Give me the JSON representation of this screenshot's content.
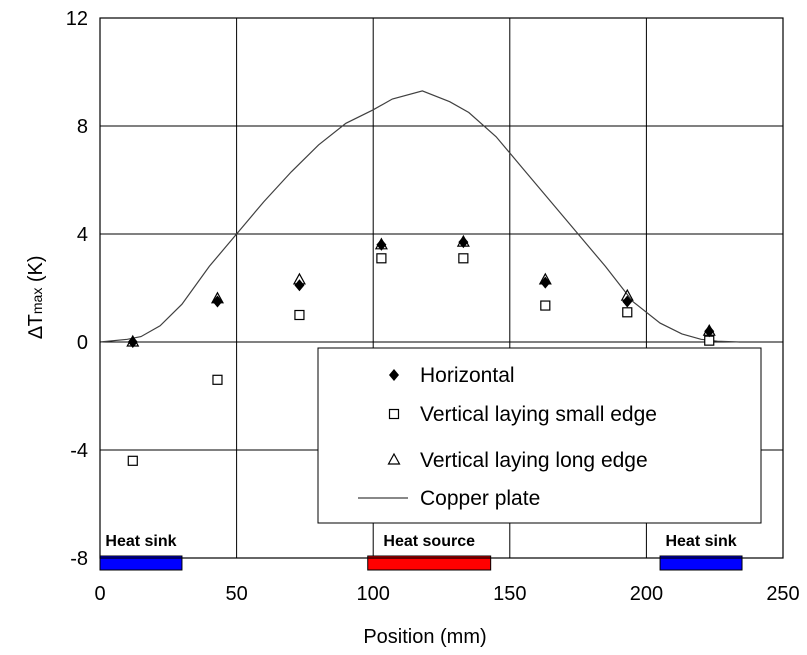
{
  "chart_data": {
    "type": "scatter",
    "xlabel": "Position (mm)",
    "ylabel_delta": "∆T",
    "ylabel_sub": "max",
    "ylabel_unit": " (K)",
    "xlim": [
      0,
      250
    ],
    "ylim": [
      -8,
      12
    ],
    "xticks": [
      0,
      50,
      100,
      150,
      200,
      250
    ],
    "yticks": [
      -8,
      -4,
      0,
      4,
      8,
      12
    ],
    "grid": true,
    "legend_position": "lower-right",
    "series": [
      {
        "name": "Horizontal",
        "marker": "filled-diamond",
        "x": [
          12,
          43,
          73,
          103,
          133,
          163,
          193,
          223
        ],
        "y": [
          0.0,
          1.5,
          2.1,
          3.6,
          3.7,
          2.2,
          1.5,
          0.4
        ]
      },
      {
        "name": "Vertical laying small edge",
        "marker": "open-square",
        "x": [
          12,
          43,
          73,
          103,
          133,
          163,
          193,
          223
        ],
        "y": [
          -4.4,
          -1.4,
          1.0,
          3.1,
          3.1,
          1.35,
          1.1,
          0.05
        ]
      },
      {
        "name": "Vertical laying long edge",
        "marker": "open-triangle",
        "x": [
          12,
          43,
          73,
          103,
          133,
          163,
          193,
          223
        ],
        "y": [
          0.0,
          1.6,
          2.3,
          3.6,
          3.7,
          2.3,
          1.7,
          0.4
        ]
      },
      {
        "name": "Copper plate",
        "marker": "line",
        "x": [
          0,
          10,
          15,
          22,
          30,
          40,
          50,
          60,
          70,
          80,
          90,
          100,
          107,
          118,
          128,
          135,
          145,
          155,
          165,
          175,
          185,
          195,
          205,
          213,
          220,
          226,
          234
        ],
        "y": [
          0.0,
          0.1,
          0.2,
          0.6,
          1.4,
          2.8,
          4.0,
          5.2,
          6.3,
          7.3,
          8.1,
          8.6,
          9.0,
          9.3,
          8.9,
          8.5,
          7.6,
          6.4,
          5.2,
          4.0,
          2.8,
          1.5,
          0.7,
          0.3,
          0.1,
          0.03,
          0.0
        ]
      }
    ],
    "regions": [
      {
        "label": "Heat sink",
        "x": [
          0,
          30
        ],
        "color": "#0000ff"
      },
      {
        "label": "Heat source",
        "x": [
          98,
          143
        ],
        "color": "#ff0000"
      },
      {
        "label": "Heat sink",
        "x": [
          205,
          235
        ],
        "color": "#0000ff"
      }
    ],
    "colors": {
      "marker": "#000000",
      "grid": "#000000",
      "line": "#404040"
    }
  }
}
